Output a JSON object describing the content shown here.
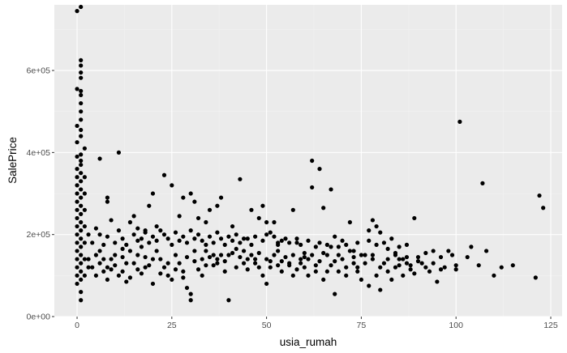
{
  "chart_data": {
    "type": "scatter",
    "title": "",
    "xlabel": "usia_rumah",
    "ylabel": "SalePrice",
    "xlim": [
      -6,
      128
    ],
    "ylim": [
      0,
      760000
    ],
    "x_ticks": [
      0,
      25,
      50,
      75,
      100,
      125
    ],
    "x_tick_labels": [
      "0",
      "25",
      "50",
      "75",
      "100",
      "125"
    ],
    "y_ticks": [
      0,
      200000,
      400000,
      600000
    ],
    "y_tick_labels": [
      "0e+00",
      "2e+05",
      "4e+05",
      "6e+05"
    ],
    "grid": true,
    "legend": "none",
    "colors": {
      "panel": "#ebebeb",
      "grid_major": "#ffffff",
      "grid_minor": "#f2f2f2",
      "point": "#000000"
    },
    "points": [
      [
        0,
        745000
      ],
      [
        1,
        755000
      ],
      [
        0,
        555000
      ],
      [
        1,
        550000
      ],
      [
        1,
        625000
      ],
      [
        1,
        612000
      ],
      [
        1,
        595000
      ],
      [
        1,
        582000
      ],
      [
        1,
        540000
      ],
      [
        1,
        520000
      ],
      [
        1,
        500000
      ],
      [
        1,
        480000
      ],
      [
        0,
        465000
      ],
      [
        1,
        455000
      ],
      [
        1,
        440000
      ],
      [
        0,
        425000
      ],
      [
        2,
        410000
      ],
      [
        1,
        395000
      ],
      [
        0,
        390000
      ],
      [
        1,
        380000
      ],
      [
        1,
        370000
      ],
      [
        0,
        360000
      ],
      [
        1,
        350000
      ],
      [
        0,
        340000
      ],
      [
        1,
        330000
      ],
      [
        0,
        320000
      ],
      [
        1,
        310000
      ],
      [
        0,
        300000
      ],
      [
        1,
        290000
      ],
      [
        0,
        280000
      ],
      [
        1,
        270000
      ],
      [
        0,
        260000
      ],
      [
        1,
        250000
      ],
      [
        0,
        240000
      ],
      [
        1,
        230000
      ],
      [
        0,
        220000
      ],
      [
        1,
        210000
      ],
      [
        0,
        200000
      ],
      [
        1,
        190000
      ],
      [
        0,
        180000
      ],
      [
        1,
        170000
      ],
      [
        0,
        160000
      ],
      [
        1,
        150000
      ],
      [
        0,
        140000
      ],
      [
        1,
        130000
      ],
      [
        0,
        120000
      ],
      [
        1,
        110000
      ],
      [
        0,
        100000
      ],
      [
        1,
        90000
      ],
      [
        0,
        80000
      ],
      [
        1,
        60000
      ],
      [
        1,
        40000
      ],
      [
        2,
        340000
      ],
      [
        2,
        300000
      ],
      [
        2,
        260000
      ],
      [
        2,
        220000
      ],
      [
        2,
        180000
      ],
      [
        2,
        140000
      ],
      [
        3,
        120000
      ],
      [
        3,
        200000
      ],
      [
        2,
        100000
      ],
      [
        5,
        215000
      ],
      [
        6,
        385000
      ],
      [
        8,
        290000
      ],
      [
        8,
        280000
      ],
      [
        9,
        235000
      ],
      [
        11,
        400000
      ],
      [
        12,
        165000
      ],
      [
        14,
        230000
      ],
      [
        15,
        245000
      ],
      [
        16,
        185000
      ],
      [
        17,
        170000
      ],
      [
        18,
        210000
      ],
      [
        19,
        270000
      ],
      [
        20,
        300000
      ],
      [
        21,
        220000
      ],
      [
        23,
        345000
      ],
      [
        25,
        320000
      ],
      [
        27,
        245000
      ],
      [
        28,
        290000
      ],
      [
        30,
        300000
      ],
      [
        31,
        280000
      ],
      [
        32,
        240000
      ],
      [
        34,
        230000
      ],
      [
        35,
        260000
      ],
      [
        37,
        270000
      ],
      [
        38,
        290000
      ],
      [
        41,
        220000
      ],
      [
        43,
        335000
      ],
      [
        45,
        190000
      ],
      [
        46,
        260000
      ],
      [
        48,
        240000
      ],
      [
        49,
        270000
      ],
      [
        50,
        230000
      ],
      [
        52,
        230000
      ],
      [
        53,
        180000
      ],
      [
        55,
        190000
      ],
      [
        57,
        260000
      ],
      [
        58,
        180000
      ],
      [
        60,
        145000
      ],
      [
        62,
        380000
      ],
      [
        62,
        315000
      ],
      [
        64,
        360000
      ],
      [
        65,
        265000
      ],
      [
        67,
        310000
      ],
      [
        68,
        195000
      ],
      [
        70,
        185000
      ],
      [
        72,
        230000
      ],
      [
        73,
        160000
      ],
      [
        75,
        150000
      ],
      [
        77,
        210000
      ],
      [
        78,
        235000
      ],
      [
        79,
        220000
      ],
      [
        80,
        205000
      ],
      [
        81,
        180000
      ],
      [
        82,
        165000
      ],
      [
        84,
        150000
      ],
      [
        86,
        140000
      ],
      [
        88,
        125000
      ],
      [
        89,
        240000
      ],
      [
        90,
        145000
      ],
      [
        92,
        155000
      ],
      [
        94,
        160000
      ],
      [
        96,
        145000
      ],
      [
        98,
        160000
      ],
      [
        100,
        125000
      ],
      [
        101,
        475000
      ],
      [
        103,
        145000
      ],
      [
        104,
        170000
      ],
      [
        106,
        125000
      ],
      [
        107,
        325000
      ],
      [
        108,
        160000
      ],
      [
        110,
        100000
      ],
      [
        112,
        120000
      ],
      [
        115,
        125000
      ],
      [
        121,
        95000
      ],
      [
        122,
        295000
      ],
      [
        123,
        265000
      ],
      [
        5,
        150000
      ],
      [
        6,
        130000
      ],
      [
        7,
        110000
      ],
      [
        8,
        90000
      ],
      [
        9,
        140000
      ],
      [
        10,
        125000
      ],
      [
        11,
        100000
      ],
      [
        12,
        145000
      ],
      [
        13,
        85000
      ],
      [
        14,
        160000
      ],
      [
        15,
        130000
      ],
      [
        16,
        115000
      ],
      [
        17,
        105000
      ],
      [
        18,
        145000
      ],
      [
        19,
        125000
      ],
      [
        20,
        80000
      ],
      [
        21,
        160000
      ],
      [
        22,
        140000
      ],
      [
        23,
        120000
      ],
      [
        24,
        100000
      ],
      [
        25,
        90000
      ],
      [
        26,
        150000
      ],
      [
        27,
        130000
      ],
      [
        28,
        110000
      ],
      [
        29,
        70000
      ],
      [
        30,
        55000
      ],
      [
        30,
        40000
      ],
      [
        31,
        135000
      ],
      [
        32,
        115000
      ],
      [
        33,
        100000
      ],
      [
        34,
        160000
      ],
      [
        35,
        145000
      ],
      [
        36,
        125000
      ],
      [
        37,
        140000
      ],
      [
        38,
        150000
      ],
      [
        39,
        110000
      ],
      [
        40,
        40000
      ],
      [
        41,
        155000
      ],
      [
        42,
        165000
      ],
      [
        43,
        145000
      ],
      [
        44,
        130000
      ],
      [
        45,
        115000
      ],
      [
        46,
        150000
      ],
      [
        47,
        140000
      ],
      [
        48,
        120000
      ],
      [
        49,
        100000
      ],
      [
        50,
        80000
      ],
      [
        51,
        135000
      ],
      [
        52,
        150000
      ],
      [
        53,
        125000
      ],
      [
        54,
        110000
      ],
      [
        55,
        145000
      ],
      [
        56,
        130000
      ],
      [
        57,
        100000
      ],
      [
        58,
        115000
      ],
      [
        59,
        140000
      ],
      [
        60,
        120000
      ],
      [
        61,
        100000
      ],
      [
        62,
        150000
      ],
      [
        63,
        110000
      ],
      [
        64,
        135000
      ],
      [
        65,
        90000
      ],
      [
        66,
        150000
      ],
      [
        67,
        125000
      ],
      [
        68,
        55000
      ],
      [
        69,
        110000
      ],
      [
        70,
        140000
      ],
      [
        71,
        100000
      ],
      [
        72,
        160000
      ],
      [
        73,
        130000
      ],
      [
        74,
        110000
      ],
      [
        75,
        90000
      ],
      [
        76,
        150000
      ],
      [
        77,
        75000
      ],
      [
        78,
        140000
      ],
      [
        79,
        100000
      ],
      [
        80,
        65000
      ],
      [
        81,
        130000
      ],
      [
        82,
        110000
      ],
      [
        83,
        90000
      ],
      [
        84,
        120000
      ],
      [
        85,
        140000
      ],
      [
        86,
        100000
      ],
      [
        87,
        130000
      ],
      [
        88,
        115000
      ],
      [
        89,
        105000
      ],
      [
        91,
        130000
      ],
      [
        93,
        110000
      ],
      [
        95,
        85000
      ],
      [
        97,
        120000
      ],
      [
        99,
        150000
      ],
      [
        100,
        115000
      ],
      [
        3,
        140000
      ],
      [
        4,
        120000
      ],
      [
        5,
        100000
      ],
      [
        6,
        160000
      ],
      [
        7,
        140000
      ],
      [
        8,
        120000
      ],
      [
        9,
        115000
      ],
      [
        10,
        150000
      ],
      [
        12,
        110000
      ],
      [
        13,
        130000
      ],
      [
        14,
        95000
      ],
      [
        16,
        150000
      ],
      [
        18,
        120000
      ],
      [
        20,
        140000
      ],
      [
        22,
        105000
      ],
      [
        24,
        130000
      ],
      [
        26,
        115000
      ],
      [
        28,
        95000
      ],
      [
        29,
        145000
      ],
      [
        31,
        160000
      ],
      [
        33,
        140000
      ],
      [
        34,
        125000
      ],
      [
        36,
        150000
      ],
      [
        37,
        130000
      ],
      [
        39,
        135000
      ],
      [
        40,
        150000
      ],
      [
        42,
        120000
      ],
      [
        44,
        160000
      ],
      [
        45,
        140000
      ],
      [
        47,
        130000
      ],
      [
        48,
        155000
      ],
      [
        50,
        140000
      ],
      [
        51,
        120000
      ],
      [
        53,
        160000
      ],
      [
        54,
        135000
      ],
      [
        56,
        125000
      ],
      [
        57,
        150000
      ],
      [
        59,
        130000
      ],
      [
        60,
        155000
      ],
      [
        61,
        140000
      ],
      [
        63,
        125000
      ],
      [
        65,
        155000
      ],
      [
        66,
        110000
      ],
      [
        68,
        135000
      ],
      [
        69,
        150000
      ],
      [
        71,
        120000
      ],
      [
        73,
        145000
      ],
      [
        74,
        120000
      ],
      [
        76,
        130000
      ],
      [
        78,
        150000
      ],
      [
        80,
        120000
      ],
      [
        82,
        140000
      ],
      [
        84,
        155000
      ],
      [
        85,
        125000
      ],
      [
        87,
        145000
      ],
      [
        90,
        135000
      ],
      [
        92,
        120000
      ],
      [
        94,
        130000
      ],
      [
        96,
        115000
      ],
      [
        4,
        180000
      ],
      [
        6,
        200000
      ],
      [
        7,
        175000
      ],
      [
        8,
        195000
      ],
      [
        10,
        180000
      ],
      [
        11,
        210000
      ],
      [
        12,
        190000
      ],
      [
        13,
        175000
      ],
      [
        15,
        200000
      ],
      [
        16,
        215000
      ],
      [
        17,
        190000
      ],
      [
        18,
        205000
      ],
      [
        19,
        180000
      ],
      [
        20,
        195000
      ],
      [
        21,
        185000
      ],
      [
        22,
        210000
      ],
      [
        23,
        200000
      ],
      [
        24,
        190000
      ],
      [
        25,
        175000
      ],
      [
        26,
        205000
      ],
      [
        27,
        185000
      ],
      [
        28,
        195000
      ],
      [
        29,
        180000
      ],
      [
        30,
        210000
      ],
      [
        31,
        190000
      ],
      [
        32,
        200000
      ],
      [
        33,
        185000
      ],
      [
        34,
        175000
      ],
      [
        35,
        195000
      ],
      [
        36,
        180000
      ],
      [
        37,
        205000
      ],
      [
        38,
        190000
      ],
      [
        39,
        175000
      ],
      [
        40,
        195000
      ],
      [
        41,
        185000
      ],
      [
        42,
        200000
      ],
      [
        43,
        180000
      ],
      [
        44,
        190000
      ],
      [
        46,
        175000
      ],
      [
        47,
        195000
      ],
      [
        49,
        185000
      ],
      [
        50,
        200000
      ],
      [
        51,
        205000
      ],
      [
        52,
        195000
      ],
      [
        53,
        175000
      ],
      [
        54,
        185000
      ],
      [
        56,
        180000
      ],
      [
        58,
        190000
      ],
      [
        59,
        175000
      ],
      [
        61,
        185000
      ],
      [
        63,
        170000
      ],
      [
        64,
        180000
      ],
      [
        66,
        175000
      ],
      [
        67,
        170000
      ],
      [
        69,
        170000
      ],
      [
        71,
        175000
      ],
      [
        74,
        180000
      ],
      [
        77,
        185000
      ],
      [
        79,
        175000
      ],
      [
        83,
        190000
      ],
      [
        85,
        170000
      ],
      [
        87,
        175000
      ]
    ]
  }
}
